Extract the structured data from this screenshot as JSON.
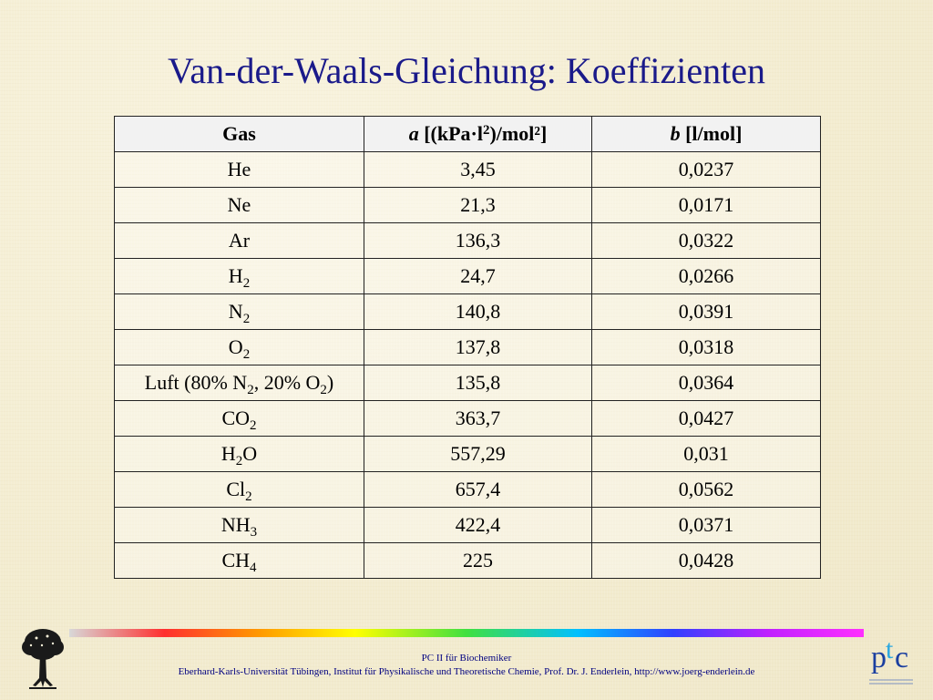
{
  "title": "Van-der-Waals-Gleichung: Koeffizienten",
  "table": {
    "header": {
      "gas": "Gas",
      "a_symbol": "a",
      "a_unit_pre": " [(kPa·l",
      "a_unit_sup": "2",
      "a_unit_post": ")/mol²]",
      "b_symbol": "b",
      "b_unit": " [l/mol]"
    },
    "rows": [
      {
        "gas": [
          {
            "t": "He"
          }
        ],
        "a": "3,45",
        "b": "0,0237"
      },
      {
        "gas": [
          {
            "t": "Ne"
          }
        ],
        "a": "21,3",
        "b": "0,0171"
      },
      {
        "gas": [
          {
            "t": "Ar"
          }
        ],
        "a": "136,3",
        "b": "0,0322"
      },
      {
        "gas": [
          {
            "t": "H"
          },
          {
            "sub": "2"
          }
        ],
        "a": "24,7",
        "b": "0,0266"
      },
      {
        "gas": [
          {
            "t": "N"
          },
          {
            "sub": "2"
          }
        ],
        "a": "140,8",
        "b": "0,0391"
      },
      {
        "gas": [
          {
            "t": "O"
          },
          {
            "sub": "2"
          }
        ],
        "a": "137,8",
        "b": "0,0318"
      },
      {
        "gas": [
          {
            "t": "Luft (80% N"
          },
          {
            "sub": "2"
          },
          {
            "t": ", 20% O"
          },
          {
            "sub": "2"
          },
          {
            "t": ")"
          }
        ],
        "a": "135,8",
        "b": "0,0364"
      },
      {
        "gas": [
          {
            "t": "CO"
          },
          {
            "sub": "2"
          }
        ],
        "a": "363,7",
        "b": "0,0427"
      },
      {
        "gas": [
          {
            "t": "H"
          },
          {
            "sub": "2"
          },
          {
            "t": "O"
          }
        ],
        "a": "557,29",
        "b": "0,031"
      },
      {
        "gas": [
          {
            "t": "Cl"
          },
          {
            "sub": "2"
          }
        ],
        "a": "657,4",
        "b": "0,0562"
      },
      {
        "gas": [
          {
            "t": "NH"
          },
          {
            "sub": "3"
          }
        ],
        "a": "422,4",
        "b": "0,0371"
      },
      {
        "gas": [
          {
            "t": "CH"
          },
          {
            "sub": "4"
          }
        ],
        "a": "225",
        "b": "0,0428"
      }
    ]
  },
  "footer": {
    "line1": "PC II für Biochemiker",
    "line2": "Eberhard-Karls-Universität Tübingen, Institut für Physikalische und Theoretische Chemie, Prof. Dr. J. Enderlein, http://www.joerg-enderlein.de",
    "ptc_logo_text": "ptc"
  },
  "colors": {
    "title": "#1a1a8a",
    "footer_text": "#000080",
    "background": "#f6f0d8",
    "logo_p": "#1b3fa0",
    "logo_t": "#2aa7e0",
    "logo_c": "#1b3fa0"
  },
  "icons": {
    "left_logo": "tree-logo-icon",
    "right_logo": "ptc-logo-icon"
  }
}
